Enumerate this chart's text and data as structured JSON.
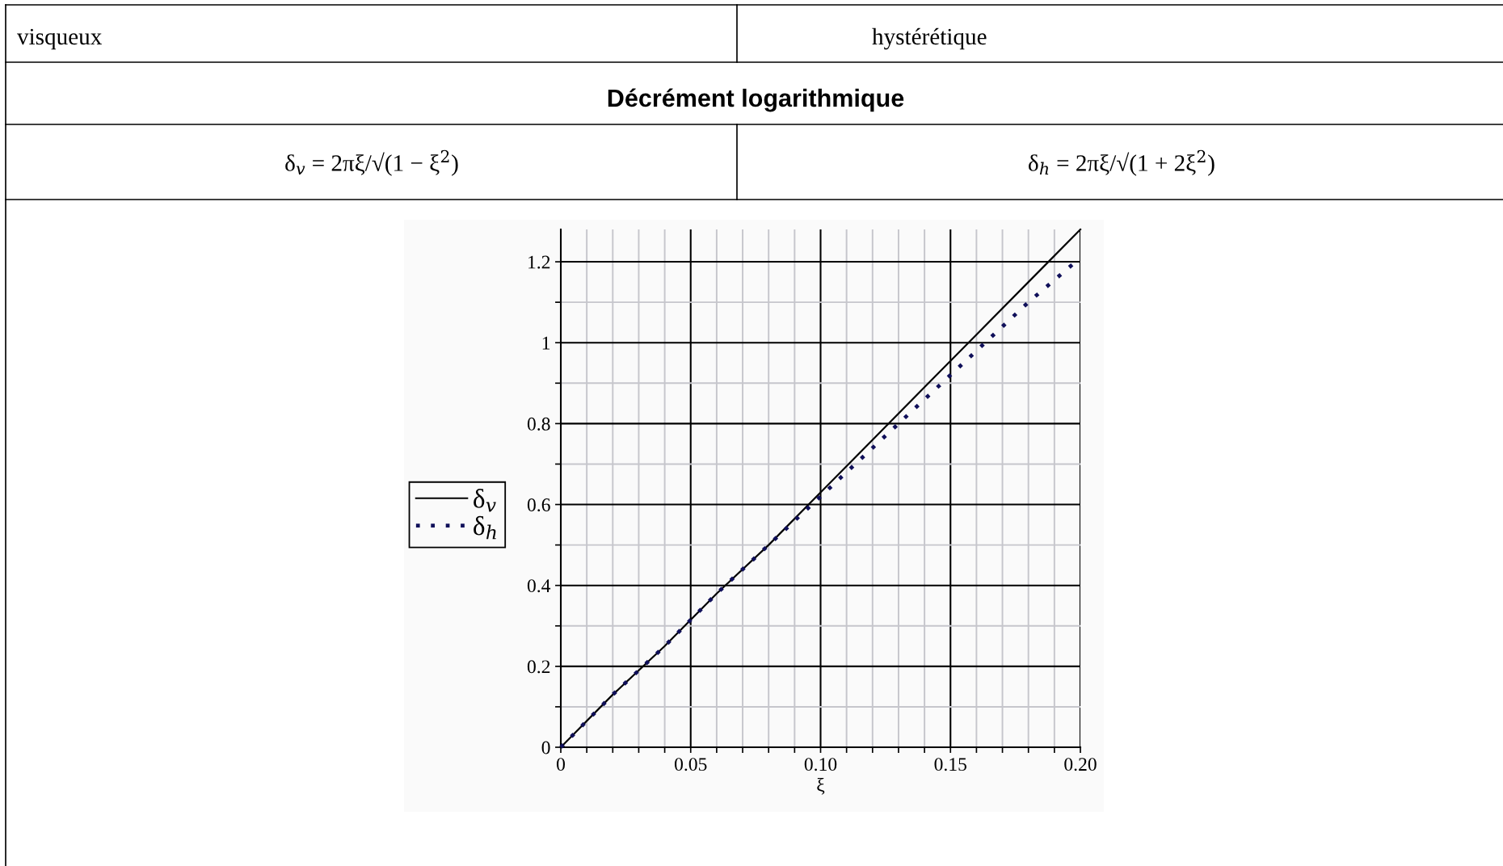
{
  "chart_data": {
    "type": "line",
    "title": "Décrément logarithmique",
    "annotations": [
      "visqueux",
      "hystérétique",
      "δ$_{v}$ = 2πξ/√(1 − ξ$^{2}$)",
      "δ$_{h}$ = 2πξ/√(1 + 2ξ$^{2}$)"
    ],
    "xlabel": "ξ",
    "x": [
      0,
      0.02,
      0.04,
      0.06,
      0.08,
      0.1,
      0.12,
      0.14,
      0.16,
      0.18,
      0.2
    ],
    "series": [
      {
        "name": "δ$_{v}$",
        "color": "#000000",
        "line_style": "solid",
        "values": [
          0,
          0.13,
          0.25,
          0.38,
          0.5,
          0.63,
          0.76,
          0.89,
          1.02,
          1.15,
          1.28
        ]
      },
      {
        "name": "δ$_{h}$",
        "color": "#10105a",
        "line_style": "dotted",
        "values": [
          0,
          0.13,
          0.25,
          0.38,
          0.5,
          0.62,
          0.74,
          0.86,
          0.98,
          1.1,
          1.21
        ]
      }
    ],
    "xlim": [
      0,
      0.2
    ],
    "ylim": [
      0,
      1.28
    ],
    "xticks": [
      0,
      {
        "value": 0.01,
        "label": null
      },
      {
        "value": 0.02,
        "label": null
      },
      {
        "value": 0.03,
        "label": null
      },
      {
        "value": 0.04,
        "label": null
      },
      {
        "value": 0.05,
        "label": "0.05"
      },
      {
        "value": 0.06,
        "label": null
      },
      {
        "value": 0.07,
        "label": null
      },
      {
        "value": 0.08,
        "label": null
      },
      {
        "value": 0.09,
        "label": null
      },
      {
        "value": 0.1,
        "label": "0.10"
      },
      {
        "value": 0.11,
        "label": null
      },
      {
        "value": 0.12,
        "label": null
      },
      {
        "value": 0.13,
        "label": null
      },
      {
        "value": 0.14,
        "label": null
      },
      {
        "value": 0.15,
        "label": "0.15"
      },
      {
        "value": 0.16,
        "label": null
      },
      {
        "value": 0.17,
        "label": null
      },
      {
        "value": 0.18,
        "label": null
      },
      {
        "value": 0.19,
        "label": null
      },
      {
        "value": 0.2,
        "label": "0.20"
      }
    ],
    "yticks": [
      0,
      {
        "value": 0.1,
        "label": null
      },
      0.2,
      {
        "value": 0.3,
        "label": null
      },
      0.4,
      {
        "value": 0.5,
        "label": null
      },
      0.6,
      {
        "value": 0.7,
        "label": null
      },
      0.8,
      {
        "value": 0.9,
        "label": null
      },
      1,
      {
        "value": 1.1,
        "label": null
      },
      1.2
    ],
    "grid": true,
    "legend": "left"
  }
}
